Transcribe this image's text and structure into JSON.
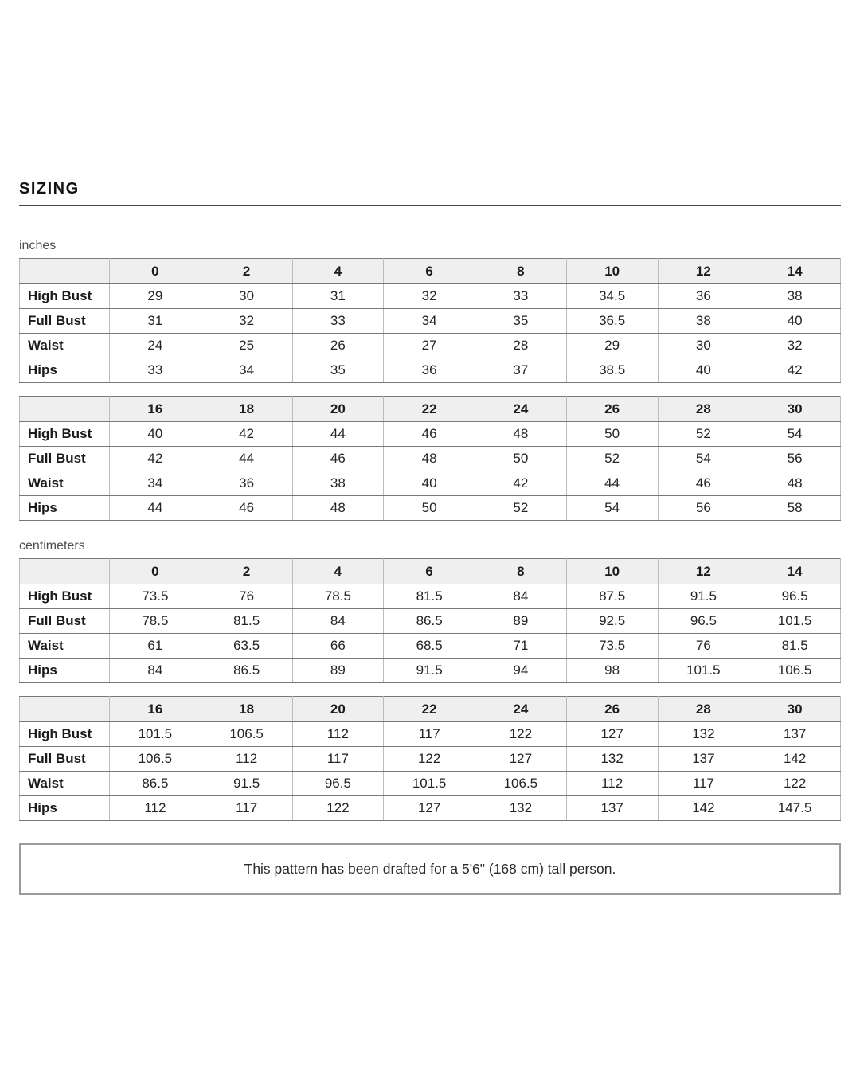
{
  "page": {
    "heading": "SIZING",
    "note": "This pattern has been drafted for a 5'6\" (168 cm) tall person."
  },
  "sections": [
    {
      "unit_label": "inches",
      "tables": [
        {
          "sizes": [
            "0",
            "2",
            "4",
            "6",
            "8",
            "10",
            "12",
            "14"
          ],
          "rows": [
            {
              "label": "High Bust",
              "values": [
                "29",
                "30",
                "31",
                "32",
                "33",
                "34.5",
                "36",
                "38"
              ]
            },
            {
              "label": "Full Bust",
              "values": [
                "31",
                "32",
                "33",
                "34",
                "35",
                "36.5",
                "38",
                "40"
              ]
            },
            {
              "label": "Waist",
              "values": [
                "24",
                "25",
                "26",
                "27",
                "28",
                "29",
                "30",
                "32"
              ]
            },
            {
              "label": "Hips",
              "values": [
                "33",
                "34",
                "35",
                "36",
                "37",
                "38.5",
                "40",
                "42"
              ]
            }
          ]
        },
        {
          "sizes": [
            "16",
            "18",
            "20",
            "22",
            "24",
            "26",
            "28",
            "30"
          ],
          "rows": [
            {
              "label": "High Bust",
              "values": [
                "40",
                "42",
                "44",
                "46",
                "48",
                "50",
                "52",
                "54"
              ]
            },
            {
              "label": "Full Bust",
              "values": [
                "42",
                "44",
                "46",
                "48",
                "50",
                "52",
                "54",
                "56"
              ]
            },
            {
              "label": "Waist",
              "values": [
                "34",
                "36",
                "38",
                "40",
                "42",
                "44",
                "46",
                "48"
              ]
            },
            {
              "label": "Hips",
              "values": [
                "44",
                "46",
                "48",
                "50",
                "52",
                "54",
                "56",
                "58"
              ]
            }
          ]
        }
      ]
    },
    {
      "unit_label": "centimeters",
      "tables": [
        {
          "sizes": [
            "0",
            "2",
            "4",
            "6",
            "8",
            "10",
            "12",
            "14"
          ],
          "rows": [
            {
              "label": "High Bust",
              "values": [
                "73.5",
                "76",
                "78.5",
                "81.5",
                "84",
                "87.5",
                "91.5",
                "96.5"
              ]
            },
            {
              "label": "Full Bust",
              "values": [
                "78.5",
                "81.5",
                "84",
                "86.5",
                "89",
                "92.5",
                "96.5",
                "101.5"
              ]
            },
            {
              "label": "Waist",
              "values": [
                "61",
                "63.5",
                "66",
                "68.5",
                "71",
                "73.5",
                "76",
                "81.5"
              ]
            },
            {
              "label": "Hips",
              "values": [
                "84",
                "86.5",
                "89",
                "91.5",
                "94",
                "98",
                "101.5",
                "106.5"
              ]
            }
          ]
        },
        {
          "sizes": [
            "16",
            "18",
            "20",
            "22",
            "24",
            "26",
            "28",
            "30"
          ],
          "rows": [
            {
              "label": "High Bust",
              "values": [
                "101.5",
                "106.5",
                "112",
                "117",
                "122",
                "127",
                "132",
                "137"
              ]
            },
            {
              "label": "Full Bust",
              "values": [
                "106.5",
                "112",
                "117",
                "122",
                "127",
                "132",
                "137",
                "142"
              ]
            },
            {
              "label": "Waist",
              "values": [
                "86.5",
                "91.5",
                "96.5",
                "101.5",
                "106.5",
                "112",
                "117",
                "122"
              ]
            },
            {
              "label": "Hips",
              "values": [
                "112",
                "117",
                "122",
                "127",
                "132",
                "137",
                "142",
                "147.5"
              ]
            }
          ]
        }
      ]
    }
  ]
}
